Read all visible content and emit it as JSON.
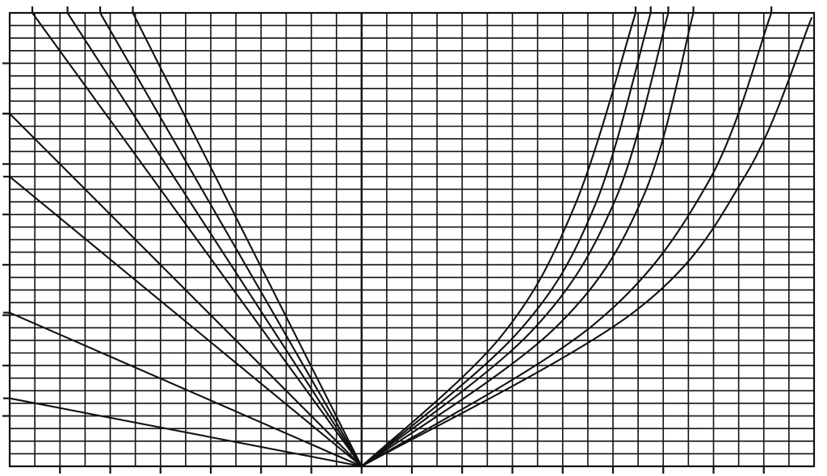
{
  "chart_data": {
    "type": "line",
    "title": "",
    "xlabel": "",
    "ylabel": "",
    "grid": true,
    "legend": "none",
    "colors": {
      "ink": "#111111",
      "paper": "#ffffff"
    },
    "xlim": [
      -14,
      18
    ],
    "ylim": [
      0,
      18
    ],
    "x_major_tick_every": 2,
    "y_major_tick_every": 2,
    "origin": [
      0,
      0
    ],
    "left_lines": [
      {
        "end": [
          -13.1,
          18.0
        ]
      },
      {
        "end": [
          -11.7,
          18.0
        ]
      },
      {
        "end": [
          -10.4,
          18.0
        ]
      },
      {
        "end": [
          -9.1,
          18.0
        ]
      },
      {
        "end": [
          -14.0,
          14.0
        ]
      },
      {
        "end": [
          -14.0,
          11.5
        ]
      },
      {
        "end": [
          -14.0,
          6.1
        ]
      },
      {
        "end": [
          -14.0,
          2.7
        ]
      }
    ],
    "right_curves": [
      {
        "points": [
          [
            0,
            0
          ],
          [
            5.5,
            5.1
          ],
          [
            8.5,
            10.4
          ],
          [
            10.9,
            18.0
          ]
        ]
      },
      {
        "points": [
          [
            0,
            0
          ],
          [
            6.2,
            5.3
          ],
          [
            9.3,
            10.4
          ],
          [
            11.5,
            18.0
          ]
        ]
      },
      {
        "points": [
          [
            0,
            0
          ],
          [
            6.7,
            5.3
          ],
          [
            10.1,
            10.6
          ],
          [
            12.2,
            18.0
          ]
        ]
      },
      {
        "points": [
          [
            0,
            0
          ],
          [
            7.6,
            5.4
          ],
          [
            11.2,
            10.7
          ],
          [
            13.2,
            18.0
          ]
        ]
      },
      {
        "points": [
          [
            0,
            0
          ],
          [
            9.2,
            5.6
          ],
          [
            13.8,
            11.3
          ],
          [
            16.3,
            18.0
          ]
        ]
      },
      {
        "points": [
          [
            0,
            0
          ],
          [
            10.8,
            6.1
          ],
          [
            15.3,
            11.6
          ],
          [
            17.9,
            17.8
          ]
        ]
      }
    ]
  }
}
